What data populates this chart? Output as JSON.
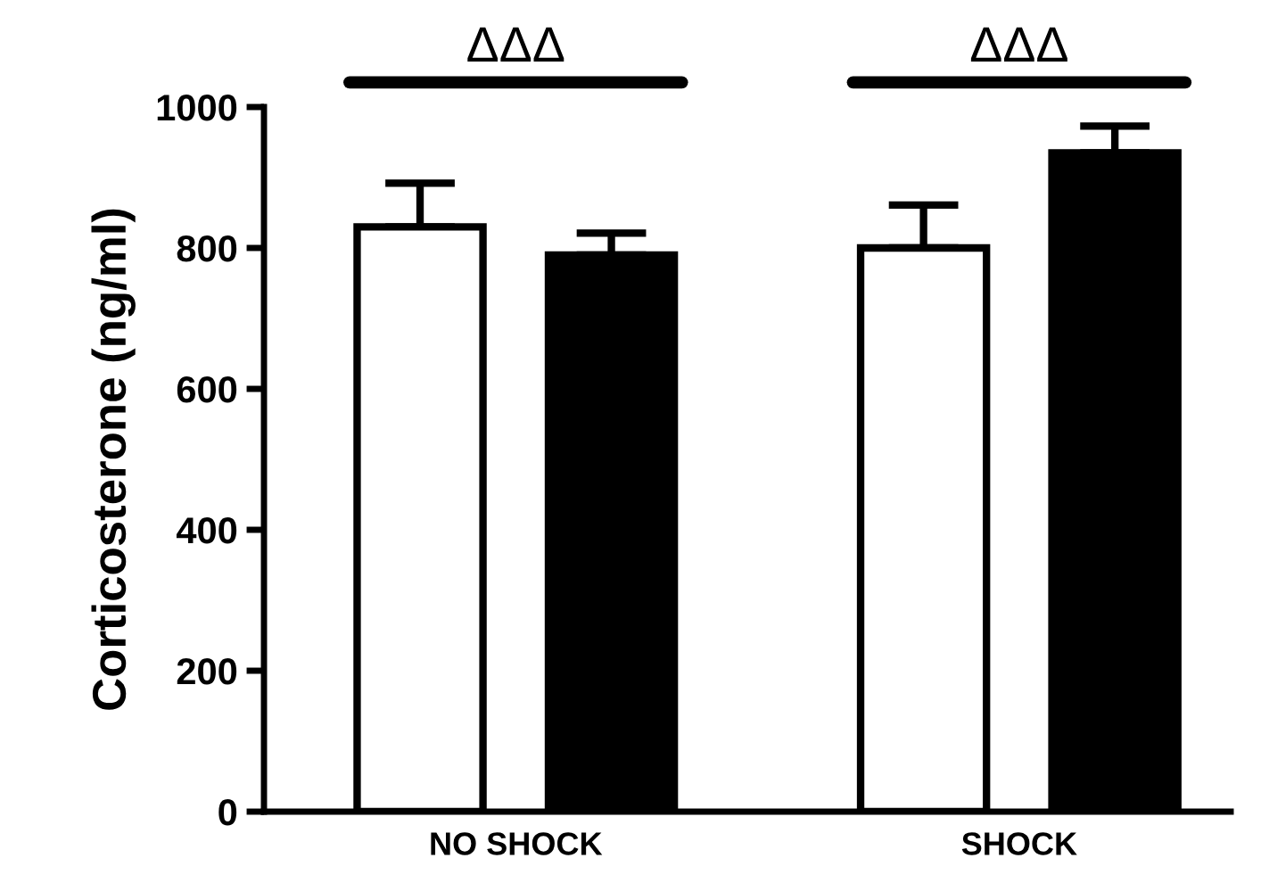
{
  "chart_data": {
    "type": "bar",
    "ylabel": "Corticosterone (ng/ml)",
    "categories": [
      "NO SHOCK",
      "SHOCK"
    ],
    "series": [
      {
        "color": "#ffffff",
        "values": [
          830,
          800
        ],
        "errors": [
          [
            830,
            892
          ],
          [
            800,
            861
          ]
        ]
      },
      {
        "color": "#000000",
        "values": [
          790,
          935
        ],
        "errors": [
          [
            790,
            821
          ],
          [
            935,
            973
          ]
        ]
      }
    ],
    "ylim": [
      0,
      1000
    ],
    "yticks": [
      0,
      200,
      400,
      600,
      800,
      1000
    ],
    "grid": false,
    "legend": false,
    "annotations": [
      "ΔΔΔ",
      "ΔΔΔ"
    ]
  }
}
